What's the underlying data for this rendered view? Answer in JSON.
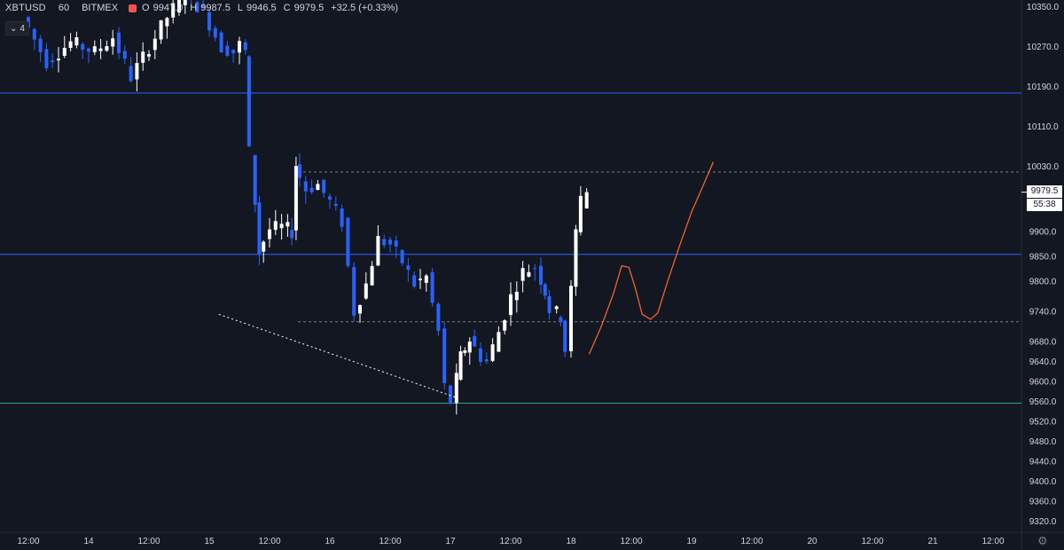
{
  "legend": {
    "symbol": "XBTUSD",
    "interval": "60",
    "exchange": "BITMEX",
    "open_label": "O",
    "open": "9947.0",
    "high_label": "H",
    "high": "9987.5",
    "low_label": "L",
    "low": "9946.5",
    "close_label": "C",
    "close": "9979.5",
    "change": "+32.5 (+0.33%)",
    "indicator_count": "4"
  },
  "price_tags": {
    "last_price": "9979.5",
    "countdown": "55:38"
  },
  "colors": {
    "background": "#131722",
    "up_candle": "#ffffff",
    "down_candle": "#2962ff",
    "blue_line": "#2962ff",
    "green_line": "#26a69a",
    "projection": "#f0622a",
    "grid_text": "#d1d4dc"
  },
  "chart_data": {
    "type": "candlestick",
    "y_axis": {
      "range": [
        9280,
        10390
      ],
      "ticks": [
        "10350.0",
        "10270.0",
        "10190.0",
        "10110.0",
        "10030.0",
        "9900.0",
        "9850.0",
        "9800.0",
        "9740.0",
        "9680.0",
        "9640.0",
        "9600.0",
        "9560.0",
        "9520.0",
        "9480.0",
        "9440.0",
        "9400.0",
        "9360.0",
        "9320.0"
      ]
    },
    "x_axis": {
      "ticks": [
        "12:00",
        "14",
        "12:00",
        "15",
        "12:00",
        "16",
        "12:00",
        "17",
        "12:00",
        "18",
        "12:00",
        "19",
        "12:00",
        "20",
        "12:00",
        "21",
        "12:00"
      ]
    },
    "horizontal_lines": [
      {
        "price": 10178,
        "style": "solid",
        "color": "blue"
      },
      {
        "price": 9855,
        "style": "solid",
        "color": "blue"
      },
      {
        "price": 9557,
        "style": "solid",
        "color": "green"
      },
      {
        "price": 10020,
        "style": "dashed",
        "color": "gray"
      },
      {
        "price": 9720,
        "style": "dashed",
        "color": "gray"
      }
    ],
    "trendline": [
      [
        15.08,
        9735
      ],
      [
        17.04,
        9569
      ]
    ],
    "projection_curve": [
      [
        18.15,
        9655
      ],
      [
        18.25,
        9710
      ],
      [
        18.35,
        9775
      ],
      [
        18.42,
        9832
      ],
      [
        18.48,
        9829
      ],
      [
        18.53,
        9790
      ],
      [
        18.59,
        9735
      ],
      [
        18.66,
        9725
      ],
      [
        18.72,
        9738
      ],
      [
        18.8,
        9800
      ],
      [
        18.9,
        9872
      ],
      [
        19.0,
        9940
      ],
      [
        19.1,
        9995
      ],
      [
        19.18,
        10040
      ]
    ],
    "candles_hourly_anchors": [
      [
        13.5,
        10330
      ],
      [
        13.7,
        10240
      ],
      [
        13.9,
        10280
      ],
      [
        14.1,
        10260
      ],
      [
        14.25,
        10290
      ],
      [
        14.4,
        10210
      ],
      [
        14.55,
        10270
      ],
      [
        14.7,
        10330
      ],
      [
        14.85,
        10380
      ],
      [
        15.0,
        10340
      ],
      [
        15.15,
        10270
      ],
      [
        15.25,
        10260
      ],
      [
        15.3,
        10275
      ],
      [
        15.33,
        10260
      ],
      [
        15.38,
        10060
      ],
      [
        15.45,
        9860
      ],
      [
        15.55,
        9905
      ],
      [
        15.65,
        9910
      ],
      [
        15.72,
        9900
      ],
      [
        15.75,
        10035
      ],
      [
        15.85,
        9985
      ],
      [
        15.95,
        9995
      ],
      [
        16.05,
        9960
      ],
      [
        16.15,
        9920
      ],
      [
        16.25,
        9740
      ],
      [
        16.35,
        9795
      ],
      [
        16.45,
        9885
      ],
      [
        16.55,
        9875
      ],
      [
        16.65,
        9840
      ],
      [
        16.75,
        9795
      ],
      [
        16.85,
        9810
      ],
      [
        16.95,
        9700
      ],
      [
        17.0,
        9590
      ],
      [
        17.05,
        9560
      ],
      [
        17.12,
        9650
      ],
      [
        17.2,
        9685
      ],
      [
        17.3,
        9650
      ],
      [
        17.35,
        9640
      ],
      [
        17.45,
        9700
      ],
      [
        17.55,
        9770
      ],
      [
        17.65,
        9820
      ],
      [
        17.75,
        9830
      ],
      [
        17.82,
        9780
      ],
      [
        17.88,
        9745
      ],
      [
        17.95,
        9730
      ],
      [
        18.0,
        9665
      ],
      [
        18.08,
        9900
      ],
      [
        18.13,
        9979.5
      ]
    ]
  }
}
